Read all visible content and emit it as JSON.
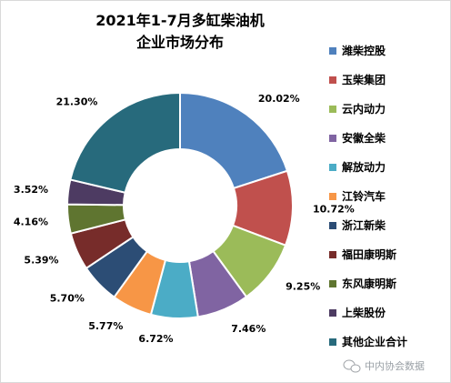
{
  "chart_data": {
    "type": "pie",
    "donut": true,
    "title": [
      "2021年1-7月多缸柴油机",
      "企业市场分布"
    ],
    "legend_position": "right",
    "slices": [
      {
        "label": "潍柴控股",
        "value": 20.02,
        "value_label": "20.02%",
        "color": "#4f81bd"
      },
      {
        "label": "玉柴集团",
        "value": 10.72,
        "value_label": "10.72%",
        "color": "#c0504d"
      },
      {
        "label": "云内动力",
        "value": 9.25,
        "value_label": "9.25%",
        "color": "#9bbb59"
      },
      {
        "label": "安徽全柴",
        "value": 7.46,
        "value_label": "7.46%",
        "color": "#8064a2"
      },
      {
        "label": "解放动力",
        "value": 6.72,
        "value_label": "6.72%",
        "color": "#4bacc6"
      },
      {
        "label": "江铃汽车",
        "value": 5.77,
        "value_label": "5.77%",
        "color": "#f79646"
      },
      {
        "label": "浙江新柴",
        "value": 5.7,
        "value_label": "5.70%",
        "color": "#2c4d75"
      },
      {
        "label": "福田康明斯",
        "value": 5.39,
        "value_label": "5.39%",
        "color": "#772c2a"
      },
      {
        "label": "东风康明斯",
        "value": 4.16,
        "value_label": "4.16%",
        "color": "#5f7530"
      },
      {
        "label": "上柴股份",
        "value": 3.52,
        "value_label": "3.52%",
        "color": "#4d3b62"
      },
      {
        "label": "其他企业合计",
        "value": 21.3,
        "value_label": "21.30%",
        "color": "#276a7c"
      }
    ]
  },
  "watermark": {
    "text": "中内协会数据",
    "icon": "wechat-icon"
  }
}
